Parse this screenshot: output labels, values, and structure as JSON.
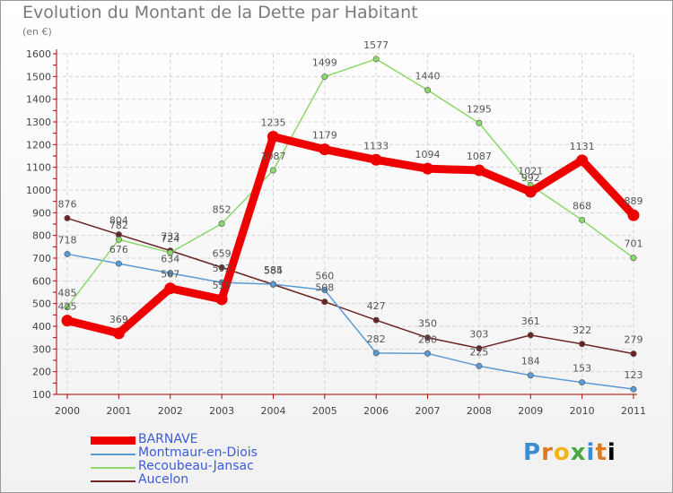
{
  "title": "Evolution du Montant de la Dette par Habitant",
  "subtitle": "(en €)",
  "logo": "Proxiti",
  "chart_data": {
    "type": "line",
    "x": [
      "2000",
      "2001",
      "2002",
      "2003",
      "2004",
      "2005",
      "2006",
      "2007",
      "2008",
      "2009",
      "2010",
      "2011"
    ],
    "ylim": [
      100,
      1600
    ],
    "yticks": [
      100,
      200,
      300,
      400,
      500,
      600,
      700,
      800,
      900,
      1000,
      1100,
      1200,
      1300,
      1400,
      1500,
      1600
    ],
    "grid": true,
    "legend_position": "bottom-left",
    "series": [
      {
        "name": "BARNAVE",
        "color": "#ee0000",
        "values": [
          425,
          369,
          567,
          519,
          1235,
          1179,
          1133,
          1094,
          1087,
          992,
          1131,
          889
        ]
      },
      {
        "name": "Montmaur-en-Diois",
        "color": "#5b9bd5",
        "values": [
          718,
          676,
          634,
          593,
          585,
          560,
          282,
          280,
          225,
          184,
          153,
          123
        ]
      },
      {
        "name": "Recoubeau-Jansac",
        "color": "#8cd86a",
        "values": [
          485,
          782,
          724,
          852,
          1087,
          1499,
          1577,
          1440,
          1295,
          1021,
          868,
          701
        ]
      },
      {
        "name": "Aucelon",
        "color": "#6b2323",
        "values": [
          876,
          804,
          733,
          659,
          584,
          508,
          427,
          350,
          303,
          361,
          322,
          279
        ]
      }
    ]
  }
}
